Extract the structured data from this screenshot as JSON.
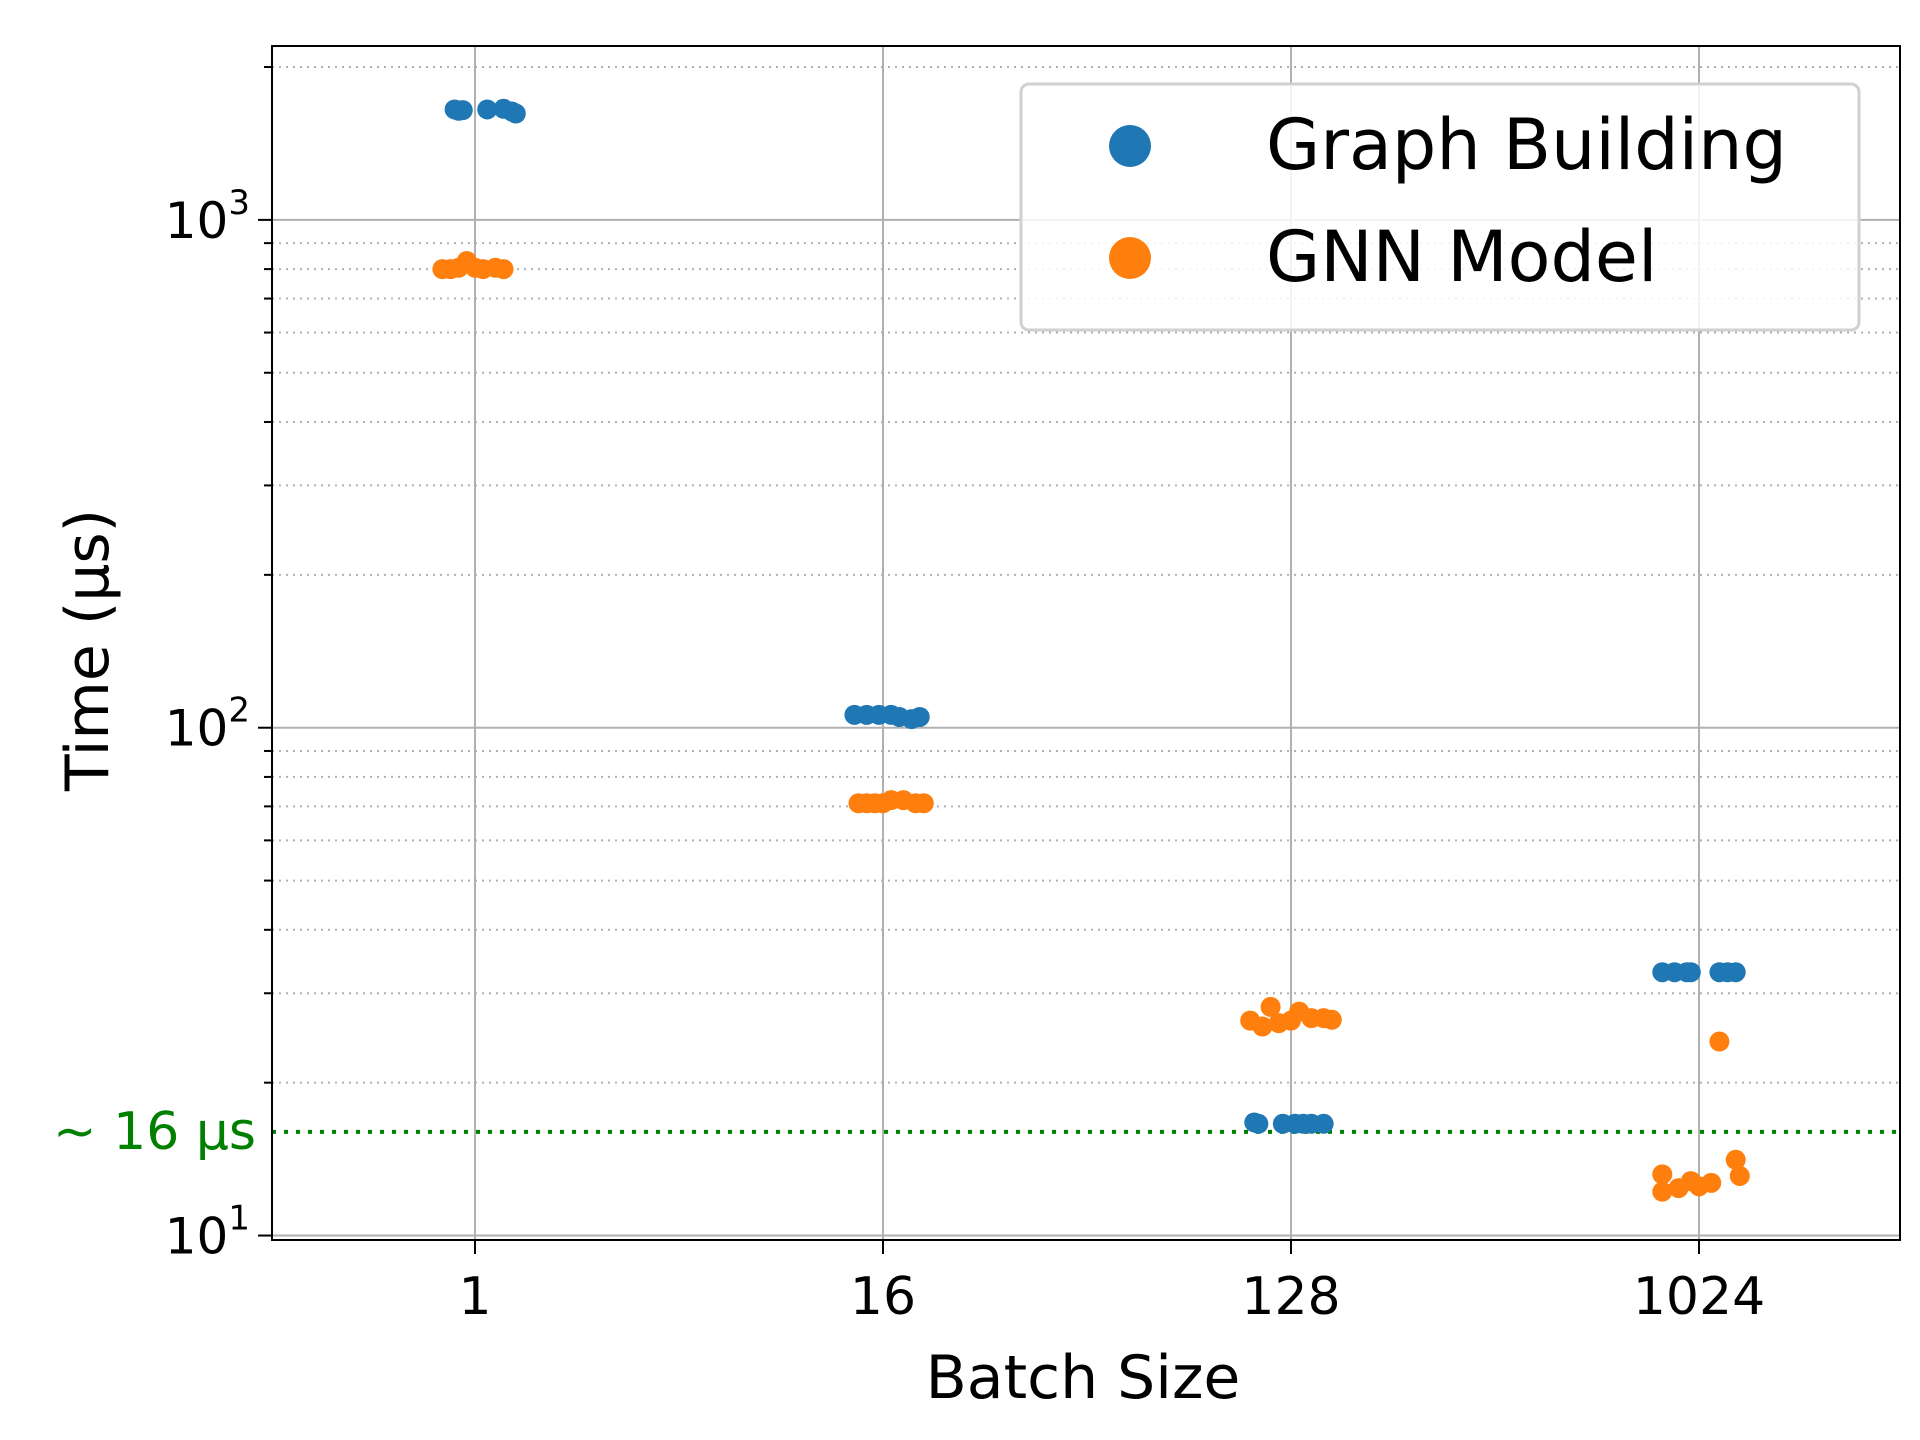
{
  "chart_data": {
    "type": "scatter",
    "xlabel": "Batch Size",
    "ylabel": "Time (µs)",
    "categories": [
      "1",
      "16",
      "128",
      "1024"
    ],
    "y_scale": "log",
    "ylim": [
      9.8,
      2200
    ],
    "y_ticks": [
      {
        "value": 10,
        "base": "10",
        "exp": "1"
      },
      {
        "value": 100,
        "base": "10",
        "exp": "2"
      },
      {
        "value": 1000,
        "base": "10",
        "exp": "3"
      }
    ],
    "grid": {
      "major": true,
      "minor_y": true
    },
    "legend": {
      "position": "top-right"
    },
    "reference_line": {
      "value": 16,
      "label": "~ 16 µs",
      "color": "#008000"
    },
    "series": [
      {
        "name": "Graph Building",
        "color": "#1f77b4",
        "points": [
          {
            "category": "1",
            "offset": -0.05,
            "value": 1650
          },
          {
            "category": "1",
            "offset": -0.04,
            "value": 1640
          },
          {
            "category": "1",
            "offset": -0.03,
            "value": 1645
          },
          {
            "category": "1",
            "offset": 0.03,
            "value": 1650
          },
          {
            "category": "1",
            "offset": 0.07,
            "value": 1655
          },
          {
            "category": "1",
            "offset": 0.09,
            "value": 1635
          },
          {
            "category": "1",
            "offset": 0.1,
            "value": 1620
          },
          {
            "category": "16",
            "offset": -0.07,
            "value": 106
          },
          {
            "category": "16",
            "offset": -0.04,
            "value": 106
          },
          {
            "category": "16",
            "offset": -0.01,
            "value": 106
          },
          {
            "category": "16",
            "offset": 0.02,
            "value": 106
          },
          {
            "category": "16",
            "offset": 0.04,
            "value": 105
          },
          {
            "category": "16",
            "offset": 0.07,
            "value": 104
          },
          {
            "category": "16",
            "offset": 0.09,
            "value": 105
          },
          {
            "category": "128",
            "offset": -0.09,
            "value": 16.7
          },
          {
            "category": "128",
            "offset": -0.08,
            "value": 16.6
          },
          {
            "category": "128",
            "offset": -0.02,
            "value": 16.6
          },
          {
            "category": "128",
            "offset": 0.01,
            "value": 16.6
          },
          {
            "category": "128",
            "offset": 0.03,
            "value": 16.6
          },
          {
            "category": "128",
            "offset": 0.05,
            "value": 16.6
          },
          {
            "category": "128",
            "offset": 0.08,
            "value": 16.6
          },
          {
            "category": "1024",
            "offset": -0.09,
            "value": 33
          },
          {
            "category": "1024",
            "offset": -0.06,
            "value": 33
          },
          {
            "category": "1024",
            "offset": -0.03,
            "value": 33
          },
          {
            "category": "1024",
            "offset": -0.02,
            "value": 33
          },
          {
            "category": "1024",
            "offset": 0.05,
            "value": 33
          },
          {
            "category": "1024",
            "offset": 0.07,
            "value": 33
          },
          {
            "category": "1024",
            "offset": 0.09,
            "value": 33
          }
        ]
      },
      {
        "name": "GNN Model",
        "color": "#ff7f0e",
        "points": [
          {
            "category": "1",
            "offset": -0.08,
            "value": 800
          },
          {
            "category": "1",
            "offset": -0.06,
            "value": 800
          },
          {
            "category": "1",
            "offset": -0.04,
            "value": 805
          },
          {
            "category": "1",
            "offset": -0.02,
            "value": 830
          },
          {
            "category": "1",
            "offset": 0.0,
            "value": 805
          },
          {
            "category": "1",
            "offset": 0.02,
            "value": 800
          },
          {
            "category": "1",
            "offset": 0.05,
            "value": 805
          },
          {
            "category": "1",
            "offset": 0.07,
            "value": 800
          },
          {
            "category": "16",
            "offset": -0.06,
            "value": 71
          },
          {
            "category": "16",
            "offset": -0.04,
            "value": 71
          },
          {
            "category": "16",
            "offset": -0.02,
            "value": 71
          },
          {
            "category": "16",
            "offset": 0.0,
            "value": 71
          },
          {
            "category": "16",
            "offset": 0.02,
            "value": 72
          },
          {
            "category": "16",
            "offset": 0.05,
            "value": 72
          },
          {
            "category": "16",
            "offset": 0.08,
            "value": 71
          },
          {
            "category": "16",
            "offset": 0.1,
            "value": 71
          },
          {
            "category": "128",
            "offset": -0.1,
            "value": 26.5
          },
          {
            "category": "128",
            "offset": -0.07,
            "value": 25.8
          },
          {
            "category": "128",
            "offset": -0.05,
            "value": 28.2
          },
          {
            "category": "128",
            "offset": -0.03,
            "value": 26.2
          },
          {
            "category": "128",
            "offset": 0.0,
            "value": 26.5
          },
          {
            "category": "128",
            "offset": 0.02,
            "value": 27.6
          },
          {
            "category": "128",
            "offset": 0.05,
            "value": 26.8
          },
          {
            "category": "128",
            "offset": 0.08,
            "value": 26.8
          },
          {
            "category": "128",
            "offset": 0.1,
            "value": 26.6
          },
          {
            "category": "1024",
            "offset": -0.09,
            "value": 12.2
          },
          {
            "category": "1024",
            "offset": -0.09,
            "value": 13.2
          },
          {
            "category": "1024",
            "offset": -0.05,
            "value": 12.4
          },
          {
            "category": "1024",
            "offset": -0.02,
            "value": 12.8
          },
          {
            "category": "1024",
            "offset": 0.0,
            "value": 12.5
          },
          {
            "category": "1024",
            "offset": 0.03,
            "value": 12.7
          },
          {
            "category": "1024",
            "offset": 0.05,
            "value": 24.1
          },
          {
            "category": "1024",
            "offset": 0.09,
            "value": 14.1
          },
          {
            "category": "1024",
            "offset": 0.1,
            "value": 13.1
          }
        ]
      }
    ]
  }
}
